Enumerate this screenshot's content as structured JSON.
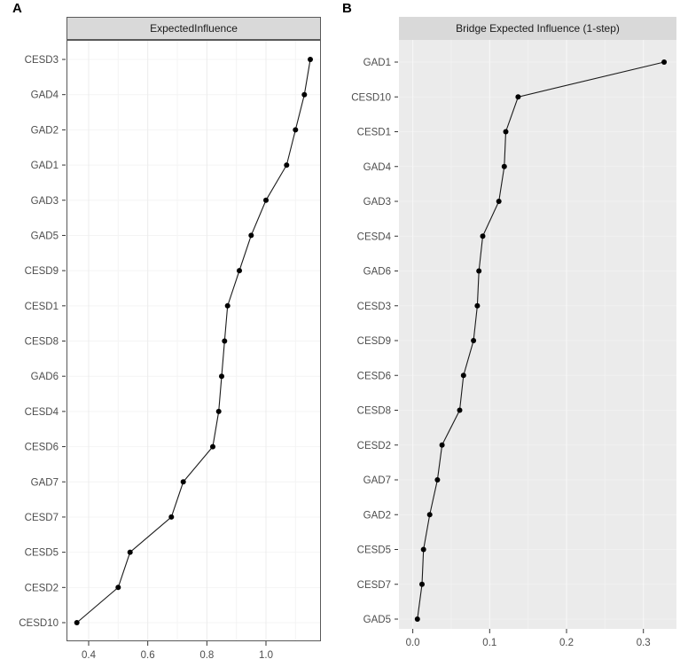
{
  "panels": [
    {
      "label": "A",
      "strip_title": "ExpectedInfluence"
    },
    {
      "label": "B",
      "strip_title": "Bridge Expected Influence (1-step)"
    }
  ],
  "colors": {
    "strip_fill": "#d9d9d9",
    "strip_border": "#595959",
    "panel_a_background": "#ffffff",
    "panel_a_border": "#595959",
    "panel_b_background": "#ebebeb",
    "grid_major_a": "#ececec",
    "grid_minor_a": "#f4f4f4",
    "grid_major_b": "#f8f8f8",
    "grid_minor_b": "#f1f1f1",
    "line": "#1a1a1a",
    "point": "#000000",
    "axis_text": "#4d4d4d",
    "tick_mark": "#333333"
  },
  "chart_data": [
    {
      "type": "line",
      "panel": "A",
      "title": "ExpectedInfluence",
      "orientation": "categories_on_y_axis_top_to_bottom",
      "categories": [
        "CESD3",
        "GAD4",
        "GAD2",
        "GAD1",
        "GAD3",
        "GAD5",
        "CESD9",
        "CESD1",
        "CESD8",
        "GAD6",
        "CESD4",
        "CESD6",
        "GAD7",
        "CESD7",
        "CESD5",
        "CESD2",
        "CESD10"
      ],
      "values": [
        1.15,
        1.13,
        1.1,
        1.07,
        1.0,
        0.95,
        0.91,
        0.87,
        0.86,
        0.85,
        0.84,
        0.82,
        0.72,
        0.68,
        0.54,
        0.5,
        0.36
      ],
      "xticks": [
        0.4,
        0.6,
        0.8,
        1.0
      ],
      "xtick_labels": [
        "0.4",
        "0.6",
        "0.8",
        "1.0"
      ],
      "xlim": [
        0.325,
        1.186
      ],
      "grid": true,
      "legend": "none"
    },
    {
      "type": "line",
      "panel": "B",
      "title": "Bridge Expected Influence (1-step)",
      "orientation": "categories_on_y_axis_top_to_bottom",
      "categories": [
        "GAD1",
        "CESD10",
        "CESD1",
        "GAD4",
        "GAD3",
        "CESD4",
        "GAD6",
        "CESD3",
        "CESD9",
        "CESD6",
        "CESD8",
        "CESD2",
        "GAD7",
        "GAD2",
        "CESD5",
        "CESD7",
        "GAD5"
      ],
      "values": [
        0.327,
        0.137,
        0.121,
        0.119,
        0.112,
        0.091,
        0.086,
        0.084,
        0.079,
        0.066,
        0.061,
        0.038,
        0.032,
        0.022,
        0.014,
        0.012,
        0.006
      ],
      "xticks": [
        0.0,
        0.1,
        0.2,
        0.3
      ],
      "xtick_labels": [
        "0.0",
        "0.1",
        "0.2",
        "0.3"
      ],
      "xlim": [
        -0.018,
        0.343
      ],
      "grid": true,
      "legend": "none"
    }
  ]
}
